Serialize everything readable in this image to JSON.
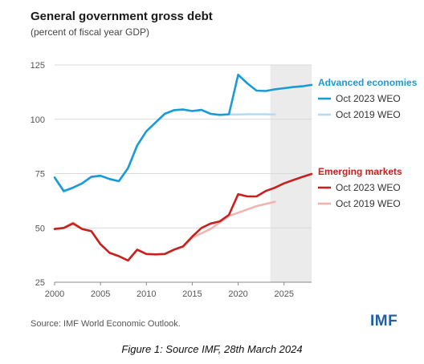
{
  "title": "General government gross debt",
  "subtitle": "(percent of fiscal year GDP)",
  "source": "Source: IMF World Economic Outlook.",
  "logo_text": "IMF",
  "caption": "Figure 1: Source IMF, 28th March 2024",
  "colors": {
    "advanced_dark": "#1a9bd7",
    "advanced_light": "#b3dcf2",
    "emerging_dark": "#c8201e",
    "emerging_light": "#f1b4ae",
    "projection_shade": "#ebebeb",
    "grid": "#d9d9d9"
  },
  "chart_data": {
    "type": "line",
    "title": "General government gross debt",
    "subtitle": "(percent of fiscal year GDP)",
    "xlim": [
      2000,
      2028
    ],
    "ylim": [
      25,
      125
    ],
    "x_ticks": [
      2000,
      2005,
      2010,
      2015,
      2020,
      2025
    ],
    "y_ticks": [
      25,
      50,
      75,
      100,
      125
    ],
    "grid": "horizontal",
    "projection_shading_start": 2023.5,
    "legend_placement": "right",
    "groups": [
      {
        "label": "Advanced economies",
        "color": "#1a9bd7"
      },
      {
        "label": "Emerging markets",
        "color": "#c8201e"
      }
    ],
    "series": [
      {
        "name": "Oct 2023 WEO",
        "group": "Advanced economies",
        "color": "#1a9bd7",
        "x": [
          2000,
          2001,
          2002,
          2003,
          2004,
          2005,
          2006,
          2007,
          2008,
          2009,
          2010,
          2011,
          2012,
          2013,
          2014,
          2015,
          2016,
          2017,
          2018,
          2019,
          2020,
          2021,
          2022,
          2023,
          2024,
          2025,
          2026,
          2027,
          2028
        ],
        "values": [
          73.2,
          67.0,
          68.5,
          70.5,
          73.5,
          74.0,
          72.5,
          71.5,
          77.5,
          88.0,
          94.5,
          98.5,
          102.5,
          104.2,
          104.5,
          103.8,
          104.3,
          102.5,
          102.0,
          102.3,
          120.5,
          116.5,
          113.2,
          113.0,
          113.8,
          114.3,
          114.8,
          115.2,
          115.8
        ]
      },
      {
        "name": "Oct 2019 WEO",
        "group": "Advanced economies",
        "color": "#b3dcf2",
        "x": [
          2000,
          2001,
          2002,
          2003,
          2004,
          2005,
          2006,
          2007,
          2008,
          2009,
          2010,
          2011,
          2012,
          2013,
          2014,
          2015,
          2016,
          2017,
          2018,
          2019,
          2020,
          2021,
          2022,
          2023,
          2024
        ],
        "values": [
          73.2,
          66.5,
          68.5,
          70.5,
          73.5,
          74.0,
          72.5,
          71.5,
          77.5,
          88.0,
          94.5,
          98.5,
          102.5,
          104.2,
          104.5,
          103.8,
          104.3,
          102.5,
          102.0,
          102.2,
          102.2,
          102.3,
          102.3,
          102.3,
          102.2
        ]
      },
      {
        "name": "Oct 2023 WEO",
        "group": "Emerging markets",
        "color": "#c8201e",
        "x": [
          2000,
          2001,
          2002,
          2003,
          2004,
          2005,
          2006,
          2007,
          2008,
          2009,
          2010,
          2011,
          2012,
          2013,
          2014,
          2015,
          2016,
          2017,
          2018,
          2019,
          2020,
          2021,
          2022,
          2023,
          2024,
          2025,
          2026,
          2027,
          2028
        ],
        "values": [
          49.5,
          50.0,
          52.0,
          49.5,
          48.5,
          42.5,
          38.5,
          37.0,
          35.0,
          40.0,
          38.0,
          37.8,
          38.0,
          40.0,
          41.5,
          46.0,
          50.0,
          52.0,
          53.0,
          56.0,
          65.5,
          64.5,
          64.5,
          67.0,
          68.5,
          70.5,
          72.0,
          73.5,
          74.8
        ]
      },
      {
        "name": "Oct 2019 WEO",
        "group": "Emerging markets",
        "color": "#f1b4ae",
        "x": [
          2000,
          2001,
          2002,
          2003,
          2004,
          2005,
          2006,
          2007,
          2008,
          2009,
          2010,
          2011,
          2012,
          2013,
          2014,
          2015,
          2016,
          2017,
          2018,
          2019,
          2020,
          2021,
          2022,
          2023,
          2024
        ],
        "values": [
          49.5,
          50.0,
          52.5,
          49.5,
          48.5,
          42.5,
          38.5,
          37.0,
          35.0,
          40.0,
          38.0,
          37.8,
          38.0,
          40.0,
          41.5,
          45.5,
          47.5,
          49.5,
          52.5,
          55.5,
          57.0,
          58.5,
          60.0,
          61.0,
          62.0
        ]
      }
    ]
  }
}
